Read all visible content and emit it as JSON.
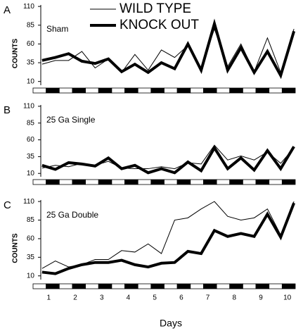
{
  "chart_data": [
    {
      "type": "line",
      "label": "A",
      "subtitle": "Sham",
      "ylabel": "COUNTS",
      "x": [
        0.75,
        1.25,
        1.75,
        2.25,
        2.75,
        3.25,
        3.75,
        4.25,
        4.75,
        5.25,
        5.75,
        6.25,
        6.75,
        7.25,
        7.75,
        8.25,
        8.75,
        9.25,
        9.75,
        10.25
      ],
      "xlim": [
        0.7,
        10.3
      ],
      "ylim": [
        5,
        112
      ],
      "yticks": [
        10,
        35,
        60,
        85,
        110
      ],
      "series": [
        {
          "name": "WILD TYPE",
          "color": "#000000",
          "width": 1,
          "values": [
            33,
            38,
            38,
            50,
            28,
            40,
            22,
            46,
            25,
            52,
            42,
            58,
            28,
            80,
            30,
            60,
            23,
            68,
            22,
            80
          ]
        },
        {
          "name": "KNOCK OUT",
          "color": "#000000",
          "width": 4,
          "values": [
            38,
            42,
            47,
            37,
            34,
            40,
            23,
            33,
            22,
            35,
            27,
            60,
            25,
            87,
            25,
            55,
            22,
            50,
            18,
            77
          ]
        }
      ]
    },
    {
      "type": "line",
      "label": "B",
      "subtitle": "25 Ga Single",
      "x": [
        0.75,
        1.25,
        1.75,
        2.25,
        2.75,
        3.25,
        3.75,
        4.25,
        4.75,
        5.25,
        5.75,
        6.25,
        6.75,
        7.25,
        7.75,
        8.25,
        8.75,
        9.25,
        9.75,
        10.25
      ],
      "xlim": [
        0.7,
        10.3
      ],
      "ylim": [
        5,
        112
      ],
      "yticks": [
        10,
        35,
        60,
        85,
        110
      ],
      "series": [
        {
          "color": "#000000",
          "width": 1,
          "values": [
            18,
            22,
            20,
            25,
            22,
            28,
            18,
            17,
            17,
            20,
            17,
            26,
            24,
            52,
            30,
            36,
            30,
            42,
            25,
            48
          ]
        },
        {
          "color": "#000000",
          "width": 4,
          "values": [
            22,
            16,
            26,
            24,
            21,
            33,
            17,
            22,
            11,
            17,
            11,
            27,
            14,
            48,
            17,
            33,
            15,
            44,
            17,
            50
          ]
        }
      ]
    },
    {
      "type": "line",
      "label": "C",
      "subtitle": "25 Ga Double",
      "ylabel": "COUNTS",
      "xlabel": "Days",
      "x": [
        0.75,
        1.25,
        1.75,
        2.25,
        2.75,
        3.25,
        3.75,
        4.25,
        4.75,
        5.25,
        5.75,
        6.25,
        6.75,
        7.25,
        7.75,
        8.25,
        8.75,
        9.25,
        9.75,
        10.25
      ],
      "xlim": [
        0.7,
        10.3
      ],
      "xticks": [
        1,
        2,
        3,
        4,
        5,
        6,
        7,
        8,
        9,
        10
      ],
      "ylim": [
        5,
        112
      ],
      "yticks": [
        10,
        35,
        60,
        85,
        110
      ],
      "series": [
        {
          "color": "#000000",
          "width": 1,
          "values": [
            20,
            30,
            22,
            25,
            32,
            32,
            44,
            42,
            53,
            40,
            85,
            88,
            100,
            110,
            90,
            85,
            88,
            100,
            65,
            110
          ]
        },
        {
          "color": "#000000",
          "width": 4,
          "values": [
            15,
            13,
            20,
            25,
            28,
            28,
            31,
            25,
            22,
            27,
            28,
            43,
            40,
            71,
            63,
            67,
            63,
            93,
            62,
            108
          ]
        }
      ]
    }
  ]
}
